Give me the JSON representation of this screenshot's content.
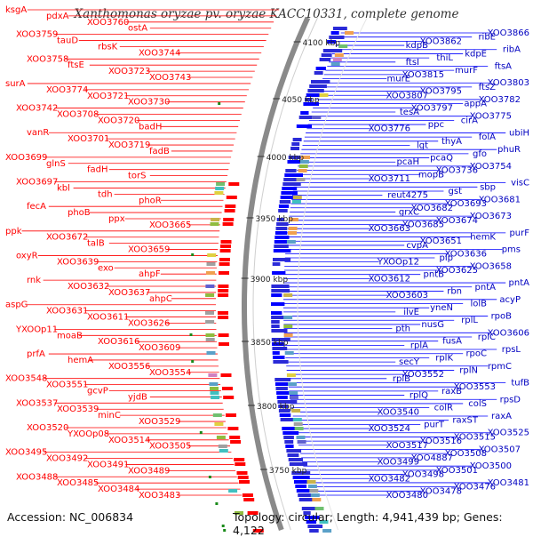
{
  "title": "Xanthomonas oryzae pv. oryzae KACC10331, complete genome",
  "accession_text": "Accession: NC_006834",
  "topology_text": "Topology: circular; Length: 4,941,439 bp; Genes: 4,122",
  "colors": {
    "left_strand": "#ff0000",
    "right_strand": "#0000ff",
    "backbone": "#888888",
    "tick": "#1a8a1a"
  },
  "scale_labels": [
    "4100 kbp",
    "4050 kbp",
    "4000 kbp",
    "3950 kbp",
    "3900 kbp",
    "3850 kbp",
    "3800 kbp",
    "3750 kbp"
  ],
  "left_labels": [
    "ksgA",
    "pdxA",
    "XOO3760",
    "ostA",
    "XOO3759",
    "tauD",
    "rbsK",
    "XOO3744",
    "XOO3758",
    "ftsE",
    "XOO3723",
    "XOO3743",
    "surA",
    "XOO3774",
    "XOO3721",
    "XOO3730",
    "XOO3742",
    "XOO3708",
    "XOO3720",
    "badH",
    "vanR",
    "XOO3701",
    "XOO3719",
    "fadB",
    "XOO3699",
    "glnS",
    "fadH",
    "torS",
    "XOO3697",
    "kbl",
    "tdh",
    "phoR",
    "fecA",
    "phoB",
    "ppx",
    "XOO3665",
    "ppk",
    "XOO3672",
    "talB",
    "XOO3659",
    "oxyR",
    "XOO3639",
    "exo",
    "ahpF",
    "rnk",
    "XOO3632",
    "XOO3637",
    "ahpC",
    "aspG",
    "XOO3631",
    "XOO3611",
    "XOO3626",
    "YXOOp11",
    "moaB",
    "XOO3616",
    "XOO3609",
    "prfA",
    "hemA",
    "XOO3556",
    "XOO3554",
    "XOO3548",
    "XOO3551",
    "gcvP",
    "yjdB",
    "XOO3537",
    "XOO3539",
    "minC",
    "XOO3529",
    "XOO3520",
    "YXOOp08",
    "XOO3514",
    "XOO3505",
    "XOO3495",
    "XOO3492",
    "XOO3491",
    "XOO3489",
    "XOO3488",
    "XOO3485",
    "XOO3484",
    "XOO3483"
  ],
  "right_labels": [
    "XOO3866",
    "ribE",
    "XOO3862",
    "kdpB",
    "ribA",
    "kdpE",
    "thiL",
    "ftsI",
    "ftsA",
    "murF",
    "XOO3815",
    "murE",
    "XOO3803",
    "ftsZ",
    "XOO3795",
    "XOO3807",
    "XOO3782",
    "appA",
    "XOO3797",
    "tesA",
    "XOO3775",
    "cirA",
    "ppc",
    "XOO3776",
    "ubiH",
    "folA",
    "thyA",
    "lgt",
    "phuR",
    "gfo",
    "pcaQ",
    "pcaH",
    "XOO3754",
    "XOO3736",
    "mopB",
    "XOO3711",
    "visC",
    "sbp",
    "gst",
    "reut4275",
    "XOO3681",
    "XOO3693",
    "XOO3682",
    "grxC",
    "XOO3673",
    "XOO3674",
    "XOO3685",
    "XOO3663",
    "purF",
    "hemK",
    "XOO3651",
    "cvpA",
    "pms",
    "XOO3636",
    "pip",
    "YXOOp12",
    "XOO3658",
    "XOO3625",
    "pntB",
    "XOO3612",
    "pntA",
    "pntA",
    "rbn",
    "XOO3603",
    "acyP",
    "lolB",
    "yneN",
    "ilvE",
    "rpoB",
    "rplL",
    "nusG",
    "pth",
    "XOO3606",
    "rplC",
    "fusA",
    "rplA",
    "rpsL",
    "rpoC",
    "rplK",
    "secY",
    "rpmC",
    "rplN",
    "XOO3552",
    "rplB",
    "tufB",
    "XOO3553",
    "raxB",
    "rplQ",
    "rpsD",
    "colS",
    "colR",
    "XOO3540",
    "raxA",
    "raxST",
    "purT",
    "XOO3524",
    "XOO3525",
    "XOO3515",
    "XOO3516",
    "XOO3517",
    "XOO3507",
    "XOO3508",
    "XOO4887",
    "XOO3499",
    "XOO3500",
    "XOO3501",
    "XOO3498",
    "XOO3482",
    "XOO3481",
    "XOO3476",
    "XOO3478",
    "XOO3480"
  ]
}
